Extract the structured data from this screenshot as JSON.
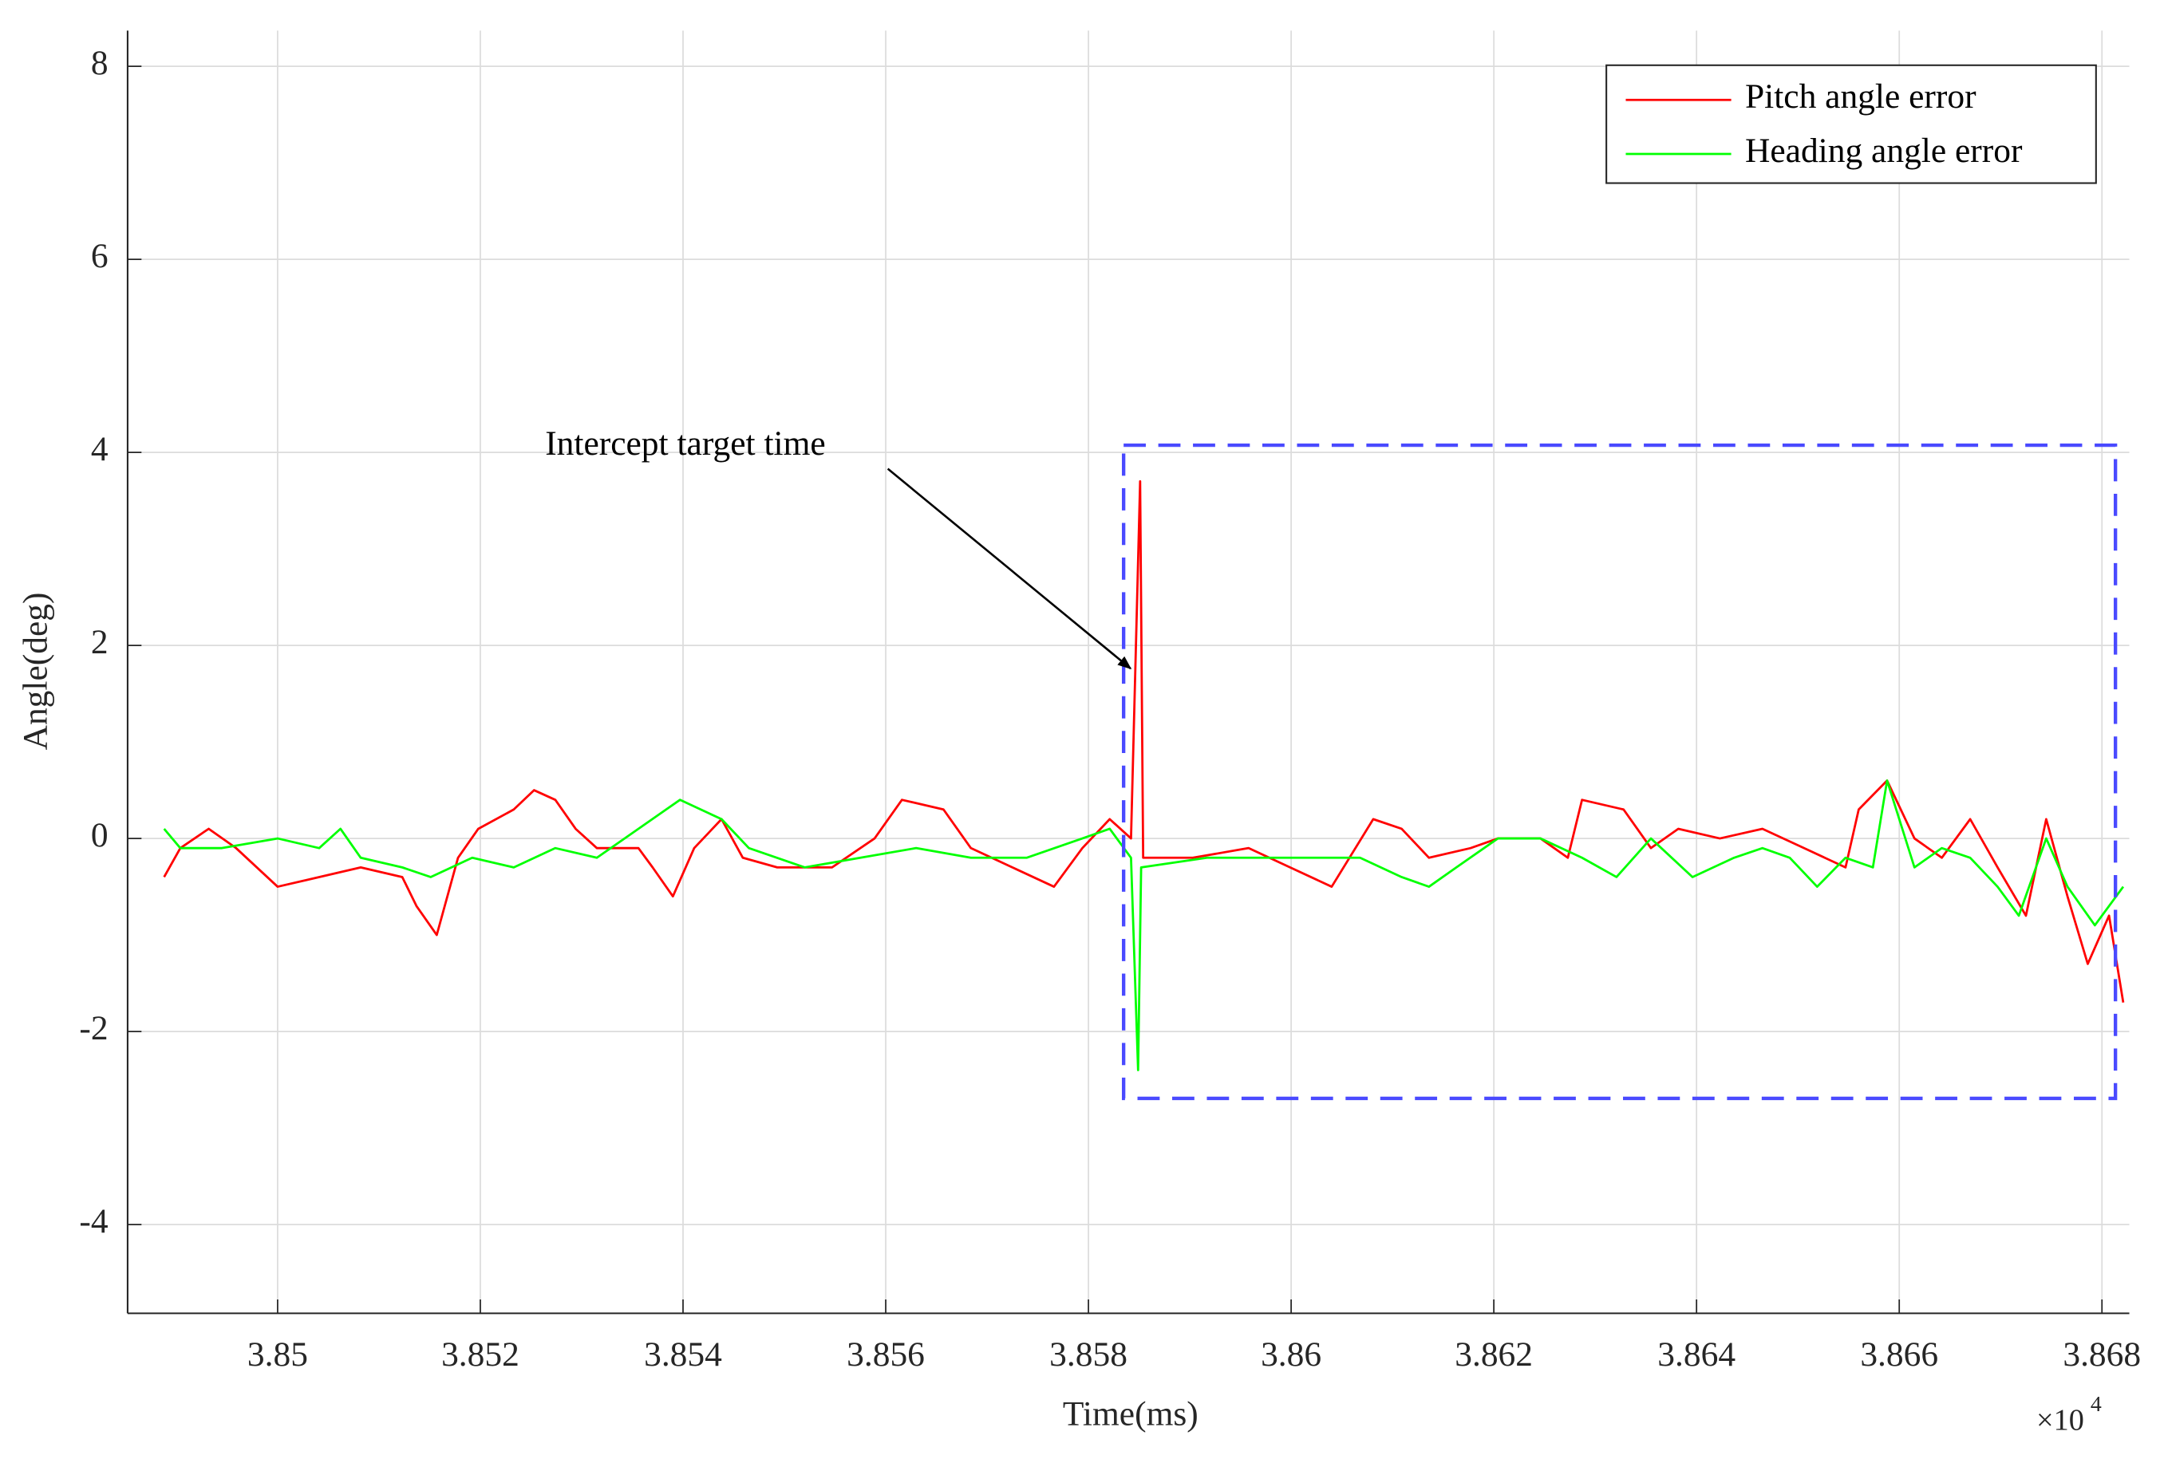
{
  "chart_data": {
    "type": "line",
    "x_label": "Time(ms)",
    "y_label": "Angle(deg)",
    "x_exponent": {
      "base": "×10",
      "power": "4"
    },
    "annotation": "Intercept target time",
    "xlim": [
      38485.2,
      38682.7
    ],
    "ylim": [
      -4.92,
      8.37
    ],
    "xticks": [
      {
        "value": 38500,
        "label": "3.85"
      },
      {
        "value": 38520,
        "label": "3.852"
      },
      {
        "value": 38540,
        "label": "3.854"
      },
      {
        "value": 38560,
        "label": "3.856"
      },
      {
        "value": 38580,
        "label": "3.858"
      },
      {
        "value": 38600,
        "label": "3.86"
      },
      {
        "value": 38620,
        "label": "3.862"
      },
      {
        "value": 38640,
        "label": "3.864"
      },
      {
        "value": 38660,
        "label": "3.866"
      },
      {
        "value": 38680,
        "label": "3.868"
      }
    ],
    "yticks": [
      -4,
      -2,
      0,
      2,
      4,
      6,
      8
    ],
    "grid": true,
    "legend": "upper right",
    "series": [
      {
        "name": "Pitch angle error",
        "color": "#ff0000",
        "x": [
          38488.8,
          38490.4,
          38493.2,
          38495.9,
          38500,
          38504.1,
          38508.2,
          38512.3,
          38513.7,
          38515.7,
          38517.8,
          38519.8,
          38523.3,
          38525.3,
          38527.4,
          38529.4,
          38531.5,
          38535.6,
          38537.0,
          38539.0,
          38541.1,
          38543.8,
          38545.9,
          38549.3,
          38554.7,
          38558.9,
          38561.6,
          38565.7,
          38568.4,
          38572.5,
          38576.6,
          38579.4,
          38582.1,
          38584.2,
          38585.1,
          38585.4,
          38590.3,
          38595.8,
          38599.9,
          38604.0,
          38608.1,
          38610.9,
          38613.6,
          38617.7,
          38620.4,
          38624.6,
          38627.3,
          38628.7,
          38632.8,
          38635.5,
          38638.2,
          38642.3,
          38646.5,
          38650.6,
          38654.7,
          38656.0,
          38658.8,
          38661.5,
          38664.2,
          38667.0,
          38669.7,
          38672.5,
          38674.5,
          38676.6,
          38678.6,
          38680.7,
          38682.1
        ],
        "values": [
          -0.4,
          -0.1,
          0.1,
          -0.1,
          -0.5,
          -0.4,
          -0.3,
          -0.4,
          -0.7,
          -1.0,
          -0.2,
          0.1,
          0.3,
          0.5,
          0.4,
          0.1,
          -0.1,
          -0.1,
          -0.3,
          -0.6,
          -0.1,
          0.2,
          -0.2,
          -0.3,
          -0.3,
          0.0,
          0.4,
          0.3,
          -0.1,
          -0.3,
          -0.5,
          -0.1,
          0.2,
          0.0,
          3.7,
          -0.2,
          -0.2,
          -0.1,
          -0.3,
          -0.5,
          0.2,
          0.1,
          -0.2,
          -0.1,
          0.0,
          0.0,
          -0.2,
          0.4,
          0.3,
          -0.1,
          0.1,
          0.0,
          0.1,
          -0.1,
          -0.3,
          0.3,
          0.6,
          0.0,
          -0.2,
          0.2,
          -0.3,
          -0.8,
          0.2,
          -0.6,
          -1.3,
          -0.8,
          -1.7
        ]
      },
      {
        "name": "Heading angle error",
        "color": "#00ff00",
        "x": [
          38488.8,
          38490.4,
          38494.5,
          38500,
          38504.1,
          38506.2,
          38508.2,
          38512.3,
          38515.1,
          38519.2,
          38523.3,
          38527.4,
          38531.5,
          38535.6,
          38539.7,
          38543.8,
          38546.5,
          38552.0,
          38557.5,
          38563.0,
          38568.4,
          38573.9,
          38579.4,
          38582.1,
          38584.2,
          38584.9,
          38585.2,
          38591.7,
          38597.2,
          38602.7,
          38606.8,
          38610.9,
          38613.6,
          38616.3,
          38620.4,
          38624.6,
          38628.7,
          38632.1,
          38635.5,
          38639.6,
          38643.7,
          38646.5,
          38649.2,
          38651.9,
          38654.7,
          38657.4,
          38658.8,
          38661.5,
          38664.2,
          38667.0,
          38669.7,
          38671.8,
          38674.5,
          38676.6,
          38679.3,
          38682.1
        ],
        "values": [
          0.1,
          -0.1,
          -0.1,
          0.0,
          -0.1,
          0.1,
          -0.2,
          -0.3,
          -0.4,
          -0.2,
          -0.3,
          -0.1,
          -0.2,
          0.1,
          0.4,
          0.2,
          -0.1,
          -0.3,
          -0.2,
          -0.1,
          -0.2,
          -0.2,
          0.0,
          0.1,
          -0.2,
          -2.4,
          -0.3,
          -0.2,
          -0.2,
          -0.2,
          -0.2,
          -0.4,
          -0.5,
          -0.3,
          0.0,
          0.0,
          -0.2,
          -0.4,
          0.0,
          -0.4,
          -0.2,
          -0.1,
          -0.2,
          -0.5,
          -0.2,
          -0.3,
          0.6,
          -0.3,
          -0.1,
          -0.2,
          -0.5,
          -0.8,
          0.0,
          -0.5,
          -0.9,
          -0.5
        ]
      }
    ]
  }
}
